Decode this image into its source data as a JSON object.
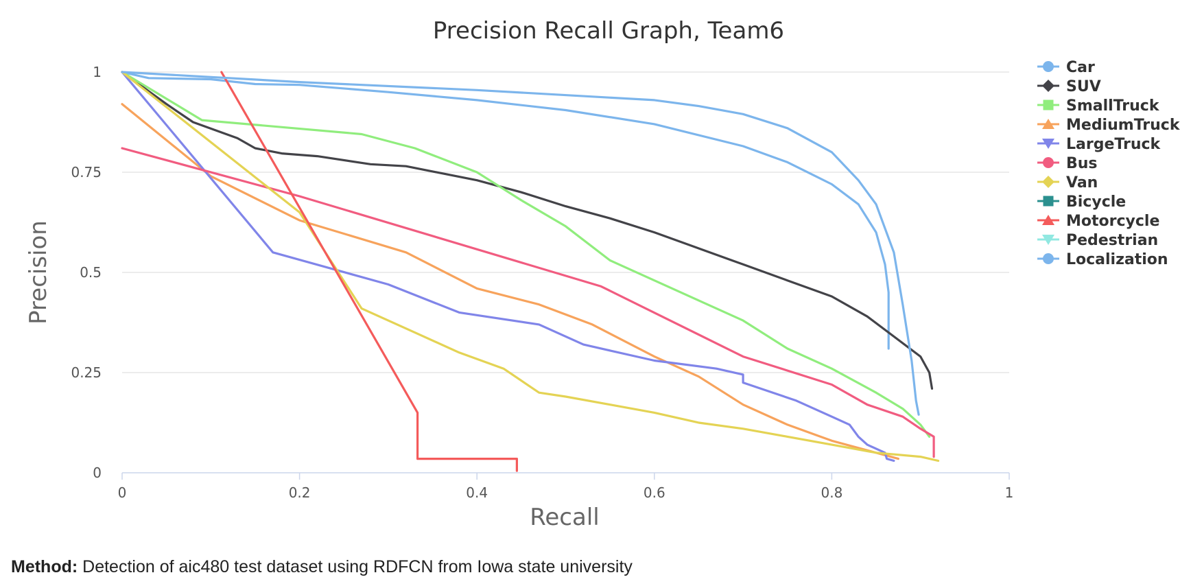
{
  "chart_data": {
    "type": "line",
    "title": "Precision Recall Graph, Team6",
    "xlabel": "Recall",
    "ylabel": "Precision",
    "xlim": [
      0,
      1
    ],
    "ylim": [
      0,
      1
    ],
    "x_ticks": [
      "0",
      "0.2",
      "0.4",
      "0.6",
      "0.8",
      "1"
    ],
    "y_ticks": [
      "0",
      "0.25",
      "0.5",
      "0.75",
      "1"
    ],
    "grid": true,
    "legend_position": "right",
    "series": [
      {
        "name": "Car",
        "color": "#7cb5ec",
        "marker": "circle",
        "points": [
          [
            0,
            1
          ],
          [
            0.03,
            0.985
          ],
          [
            0.1,
            0.982
          ],
          [
            0.15,
            0.97
          ],
          [
            0.2,
            0.968
          ],
          [
            0.3,
            0.95
          ],
          [
            0.4,
            0.93
          ],
          [
            0.5,
            0.905
          ],
          [
            0.6,
            0.87
          ],
          [
            0.7,
            0.815
          ],
          [
            0.75,
            0.775
          ],
          [
            0.8,
            0.72
          ],
          [
            0.83,
            0.67
          ],
          [
            0.85,
            0.6
          ],
          [
            0.86,
            0.52
          ],
          [
            0.864,
            0.45
          ],
          [
            0.864,
            0.31
          ]
        ]
      },
      {
        "name": "SUV",
        "color": "#434348",
        "marker": "diamond",
        "points": [
          [
            0,
            1
          ],
          [
            0.05,
            0.92
          ],
          [
            0.08,
            0.875
          ],
          [
            0.13,
            0.835
          ],
          [
            0.15,
            0.81
          ],
          [
            0.18,
            0.797
          ],
          [
            0.22,
            0.79
          ],
          [
            0.28,
            0.77
          ],
          [
            0.32,
            0.765
          ],
          [
            0.4,
            0.73
          ],
          [
            0.45,
            0.7
          ],
          [
            0.5,
            0.665
          ],
          [
            0.55,
            0.635
          ],
          [
            0.6,
            0.6
          ],
          [
            0.65,
            0.56
          ],
          [
            0.7,
            0.52
          ],
          [
            0.75,
            0.48
          ],
          [
            0.8,
            0.44
          ],
          [
            0.84,
            0.39
          ],
          [
            0.87,
            0.34
          ],
          [
            0.9,
            0.29
          ],
          [
            0.91,
            0.25
          ],
          [
            0.913,
            0.21
          ]
        ]
      },
      {
        "name": "SmallTruck",
        "color": "#90ed7d",
        "marker": "square",
        "points": [
          [
            0,
            1
          ],
          [
            0.09,
            0.88
          ],
          [
            0.27,
            0.845
          ],
          [
            0.33,
            0.81
          ],
          [
            0.4,
            0.75
          ],
          [
            0.45,
            0.68
          ],
          [
            0.5,
            0.615
          ],
          [
            0.55,
            0.53
          ],
          [
            0.6,
            0.48
          ],
          [
            0.65,
            0.43
          ],
          [
            0.7,
            0.38
          ],
          [
            0.75,
            0.31
          ],
          [
            0.8,
            0.26
          ],
          [
            0.85,
            0.2
          ],
          [
            0.88,
            0.16
          ],
          [
            0.9,
            0.12
          ],
          [
            0.91,
            0.09
          ]
        ]
      },
      {
        "name": "MediumTruck",
        "color": "#f7a35c",
        "marker": "triangle",
        "points": [
          [
            0,
            0.92
          ],
          [
            0.1,
            0.74
          ],
          [
            0.2,
            0.63
          ],
          [
            0.32,
            0.55
          ],
          [
            0.4,
            0.46
          ],
          [
            0.47,
            0.42
          ],
          [
            0.53,
            0.37
          ],
          [
            0.6,
            0.29
          ],
          [
            0.65,
            0.24
          ],
          [
            0.7,
            0.17
          ],
          [
            0.75,
            0.12
          ],
          [
            0.8,
            0.08
          ],
          [
            0.85,
            0.05
          ],
          [
            0.875,
            0.035
          ]
        ]
      },
      {
        "name": "LargeTruck",
        "color": "#8085e9",
        "marker": "triangle-down",
        "points": [
          [
            0,
            1
          ],
          [
            0.17,
            0.55
          ],
          [
            0.3,
            0.47
          ],
          [
            0.38,
            0.4
          ],
          [
            0.47,
            0.37
          ],
          [
            0.52,
            0.32
          ],
          [
            0.6,
            0.28
          ],
          [
            0.67,
            0.26
          ],
          [
            0.7,
            0.245
          ],
          [
            0.7,
            0.225
          ],
          [
            0.76,
            0.18
          ],
          [
            0.8,
            0.14
          ],
          [
            0.82,
            0.12
          ],
          [
            0.83,
            0.09
          ],
          [
            0.84,
            0.07
          ],
          [
            0.86,
            0.05
          ],
          [
            0.862,
            0.035
          ],
          [
            0.87,
            0.03
          ]
        ]
      },
      {
        "name": "Bus",
        "color": "#f15c80",
        "marker": "circle",
        "points": [
          [
            0,
            0.81
          ],
          [
            0.2,
            0.69
          ],
          [
            0.54,
            0.465
          ],
          [
            0.7,
            0.29
          ],
          [
            0.8,
            0.22
          ],
          [
            0.84,
            0.17
          ],
          [
            0.88,
            0.14
          ],
          [
            0.9,
            0.11
          ],
          [
            0.915,
            0.09
          ],
          [
            0.915,
            0.04
          ]
        ]
      },
      {
        "name": "Van",
        "color": "#e4d354",
        "marker": "diamond",
        "points": [
          [
            0,
            1
          ],
          [
            0.2,
            0.65
          ],
          [
            0.27,
            0.41
          ],
          [
            0.33,
            0.35
          ],
          [
            0.38,
            0.3
          ],
          [
            0.43,
            0.26
          ],
          [
            0.47,
            0.2
          ],
          [
            0.5,
            0.19
          ],
          [
            0.55,
            0.17
          ],
          [
            0.6,
            0.15
          ],
          [
            0.65,
            0.125
          ],
          [
            0.7,
            0.11
          ],
          [
            0.75,
            0.09
          ],
          [
            0.8,
            0.07
          ],
          [
            0.85,
            0.05
          ],
          [
            0.9,
            0.04
          ],
          [
            0.92,
            0.03
          ]
        ]
      },
      {
        "name": "Bicycle",
        "color": "#2b908f",
        "marker": "square",
        "points": []
      },
      {
        "name": "Motorcycle",
        "color": "#f45b5b",
        "marker": "triangle",
        "points": [
          [
            0.112,
            1
          ],
          [
            0.333,
            0.15
          ],
          [
            0.333,
            0.035
          ],
          [
            0.445,
            0.035
          ],
          [
            0.445,
            0.005
          ]
        ]
      },
      {
        "name": "Pedestrian",
        "color": "#91e8e1",
        "marker": "triangle-down",
        "points": []
      },
      {
        "name": "Localization",
        "color": "#7cb5ec",
        "marker": "circle",
        "points": [
          [
            0,
            1
          ],
          [
            0.2,
            0.975
          ],
          [
            0.4,
            0.955
          ],
          [
            0.6,
            0.93
          ],
          [
            0.65,
            0.915
          ],
          [
            0.7,
            0.895
          ],
          [
            0.75,
            0.86
          ],
          [
            0.8,
            0.8
          ],
          [
            0.83,
            0.73
          ],
          [
            0.85,
            0.67
          ],
          [
            0.87,
            0.55
          ],
          [
            0.88,
            0.42
          ],
          [
            0.89,
            0.28
          ],
          [
            0.895,
            0.18
          ],
          [
            0.898,
            0.145
          ]
        ]
      }
    ]
  },
  "footer": {
    "method_label": "Method:",
    "method_text": " Detection of aic480 test dataset using RDFCN from Iowa state university"
  }
}
